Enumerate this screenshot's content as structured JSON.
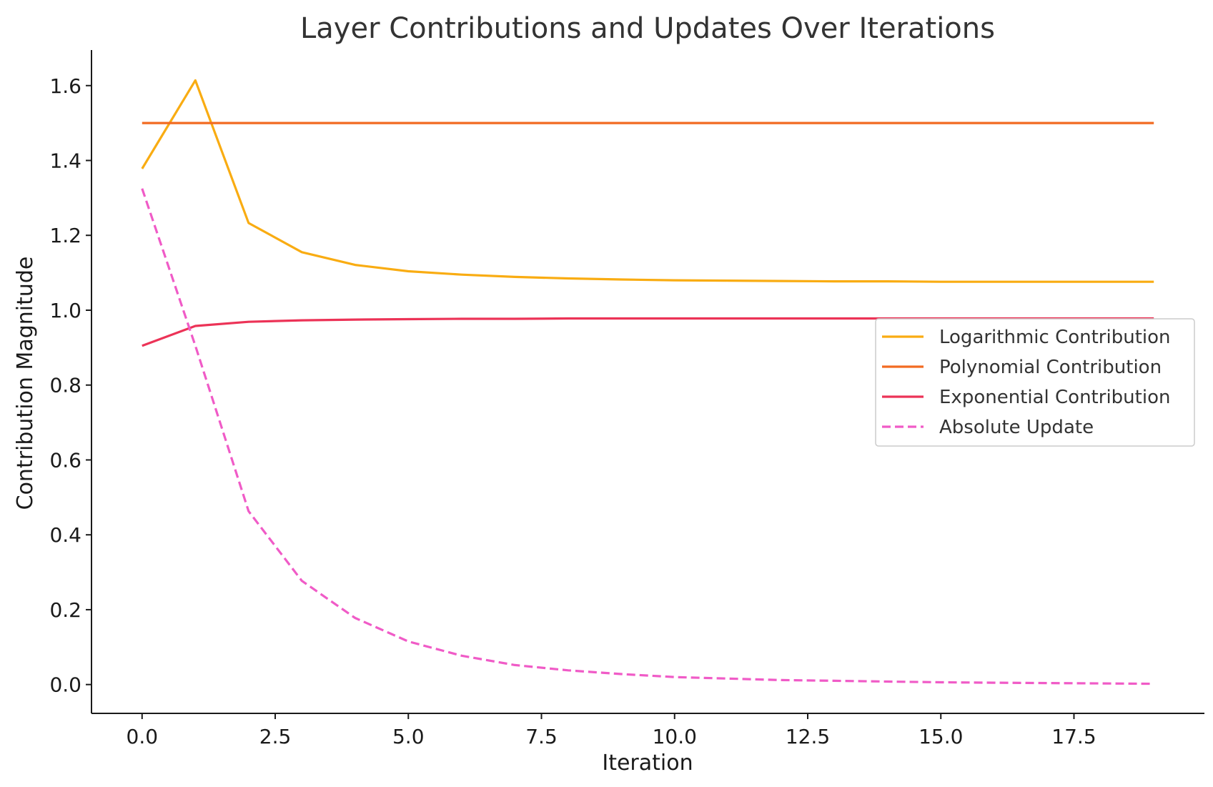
{
  "chart_data": {
    "type": "line",
    "title": "Layer Contributions and Updates Over Iterations",
    "xlabel": "Iteration",
    "ylabel": "Contribution Magnitude",
    "xlim": [
      -0.95,
      19.95
    ],
    "ylim": [
      -0.077,
      1.695
    ],
    "xticks": [
      0,
      2.5,
      5,
      7.5,
      10,
      12.5,
      15,
      17.5
    ],
    "xtick_labels": [
      "0.0",
      "2.5",
      "5.0",
      "7.5",
      "10.0",
      "12.5",
      "15.0",
      "17.5"
    ],
    "yticks": [
      0,
      0.2,
      0.4,
      0.6,
      0.8,
      1.0,
      1.2,
      1.4,
      1.6
    ],
    "ytick_labels": [
      "0.0",
      "0.2",
      "0.4",
      "0.6",
      "0.8",
      "1.0",
      "1.2",
      "1.4",
      "1.6"
    ],
    "grid": false,
    "legend_position": "center-right",
    "x": [
      0,
      1,
      2,
      3,
      4,
      5,
      6,
      7,
      8,
      9,
      10,
      11,
      12,
      13,
      14,
      15,
      16,
      17,
      18,
      19
    ],
    "series": [
      {
        "name": "Logarithmic Contribution",
        "color": "#F9AC12",
        "style": "solid",
        "values": [
          1.378,
          1.614,
          1.233,
          1.155,
          1.121,
          1.104,
          1.095,
          1.089,
          1.085,
          1.082,
          1.08,
          1.079,
          1.078,
          1.077,
          1.077,
          1.076,
          1.076,
          1.076,
          1.076,
          1.076
        ]
      },
      {
        "name": "Polynomial Contribution",
        "color": "#F26B21",
        "style": "solid",
        "values": [
          1.5,
          1.5,
          1.5,
          1.5,
          1.5,
          1.5,
          1.5,
          1.5,
          1.5,
          1.5,
          1.5,
          1.5,
          1.5,
          1.5,
          1.5,
          1.5,
          1.5,
          1.5,
          1.5,
          1.5
        ]
      },
      {
        "name": "Exponential Contribution",
        "color": "#EC3357",
        "style": "solid",
        "values": [
          0.905,
          0.958,
          0.969,
          0.973,
          0.975,
          0.976,
          0.977,
          0.977,
          0.978,
          0.978,
          0.978,
          0.978,
          0.978,
          0.978,
          0.978,
          0.978,
          0.978,
          0.978,
          0.978,
          0.978
        ]
      },
      {
        "name": "Absolute Update",
        "color": "#F05BC7",
        "style": "dashed",
        "values": [
          1.325,
          0.905,
          0.463,
          0.277,
          0.178,
          0.115,
          0.077,
          0.052,
          0.038,
          0.028,
          0.02,
          0.016,
          0.012,
          0.01,
          0.008,
          0.006,
          0.005,
          0.004,
          0.003,
          0.002
        ]
      }
    ]
  }
}
